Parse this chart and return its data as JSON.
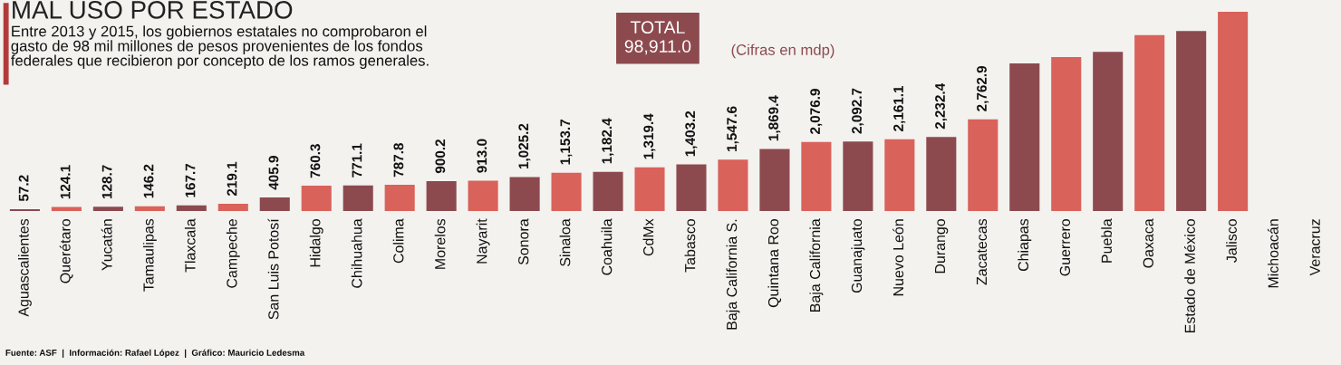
{
  "chart_data": {
    "type": "bar",
    "title": "MAL USO POR ESTADO",
    "subtitle": "Entre 2013 y 2015, los gobiernos estatales no comprobaron el\ngasto de 98 mil millones de pesos provenientes de los fondos\nfederales que recibieron por concepto de los ramos generales.",
    "categories": [
      "Aguascalientes",
      "Querétaro",
      "Yucatán",
      "Tamaulipas",
      "Tlaxcala",
      "Campeche",
      "San Luis Potosí",
      "Hidalgo",
      "Chihuahua",
      "Colima",
      "Morelos",
      "Nayarit",
      "Sonora",
      "Sinaloa",
      "Coahuila",
      "CdMx",
      "Tabasco",
      "Baja California S.",
      "Quintana Roo",
      "Baja California",
      "Guanajuato",
      "Nuevo León",
      "Durango",
      "Zacatecas",
      "Chiapas",
      "Guerrero",
      "Puebla",
      "Oaxaca",
      "Estado de México",
      "Jalisco",
      "Michoacán",
      "Veracruz"
    ],
    "values": [
      57.2,
      124.1,
      128.7,
      146.2,
      167.7,
      219.1,
      405.9,
      760.3,
      771.1,
      787.8,
      900.2,
      913.0,
      1025.2,
      1153.7,
      1182.4,
      1319.4,
      1403.2,
      1547.6,
      1869.4,
      2076.9,
      2092.7,
      2161.1,
      2232.4,
      2762.9,
      4445,
      4635,
      4792,
      5300,
      5420,
      6000,
      null,
      null
    ],
    "value_labels": [
      "57.2",
      "124.1",
      "128.7",
      "146.2",
      "167.7",
      "219.1",
      "405.9",
      "760.3",
      "771.1",
      "787.8",
      "900.2",
      "913.0",
      "1,025.2",
      "1,153.7",
      "1,182.4",
      "1,319.4",
      "1,403.2",
      "1,547.6",
      "1,869.4",
      "2,076.9",
      "2,092.7",
      "2,161.1",
      "2,232.4",
      "2,762.9",
      null,
      null,
      null,
      null,
      null,
      null,
      null,
      null
    ],
    "colors": [
      "#8c4a4f",
      "#d9625b",
      "#8c4a4f",
      "#d9625b",
      "#8c4a4f",
      "#d9625b",
      "#8c4a4f",
      "#d9625b",
      "#8c4a4f",
      "#d9625b",
      "#8c4a4f",
      "#d9625b",
      "#8c4a4f",
      "#d9625b",
      "#8c4a4f",
      "#d9625b",
      "#8c4a4f",
      "#d9625b",
      "#8c4a4f",
      "#d9625b",
      "#8c4a4f",
      "#d9625b",
      "#8c4a4f",
      "#d9625b",
      "#8c4a4f",
      "#d9625b",
      "#8c4a4f",
      "#d9625b",
      "#8c4a4f",
      "#d9625b",
      "#8c4a4f",
      "#d9625b"
    ],
    "ylim": [
      0,
      6300
    ],
    "grid": false,
    "legend": false,
    "annotations": [
      "TOTAL\n98,911.0",
      "(Cifras en mdp)",
      "Fuente: ASF  |  Información: Rafael López  |  Gráfico: Mauricio Ledesma"
    ]
  }
}
